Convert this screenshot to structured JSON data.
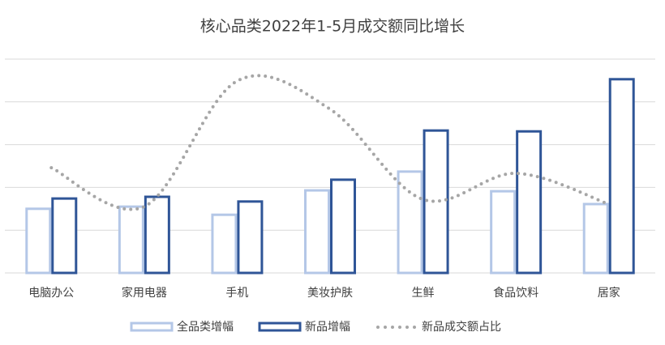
{
  "chart_data": {
    "type": "bar",
    "title": "核心品类2022年1-5月成交额同比增长",
    "categories": [
      "电脑办公",
      "家用电器",
      "手机",
      "美妆护肤",
      "生鲜",
      "食品饮料",
      "居家"
    ],
    "series": [
      {
        "name": "全品类增幅",
        "type": "bar",
        "color": "#b4c7e7",
        "values": [
          1.5,
          1.55,
          1.36,
          1.93,
          2.37,
          1.91,
          1.61
        ]
      },
      {
        "name": "新品增幅",
        "type": "bar",
        "color": "#2f5597",
        "values": [
          1.74,
          1.78,
          1.67,
          2.18,
          3.33,
          3.31,
          4.53
        ]
      },
      {
        "name": "新品成交额占比",
        "type": "line",
        "color": "#a6a6a6",
        "values": [
          2.46,
          1.55,
          4.49,
          3.83,
          1.72,
          2.33,
          1.61
        ]
      }
    ],
    "ylim": [
      0,
      5
    ],
    "yticks": [
      0,
      1,
      2,
      3,
      4,
      5
    ],
    "grid": true
  }
}
